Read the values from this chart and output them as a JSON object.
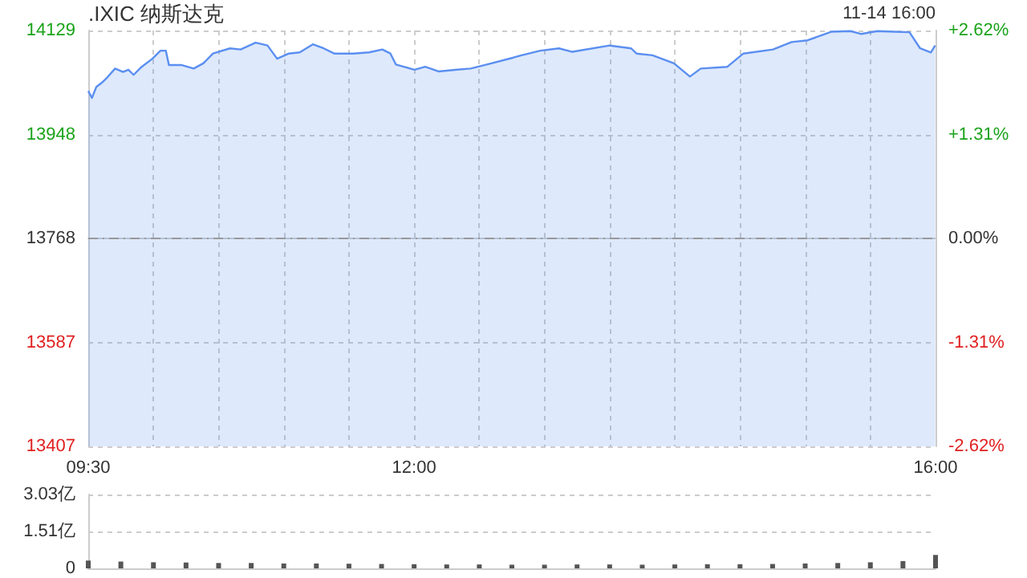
{
  "chart_data": [
    {
      "type": "line",
      "title": ".IXIC 纳斯达克",
      "annotations": [
        "11-14 16:00"
      ],
      "x": [
        9.5,
        9.528,
        9.562,
        9.602,
        9.644,
        9.706,
        9.767,
        9.808,
        9.848,
        9.91,
        9.992,
        10.054,
        10.095,
        10.119,
        10.218,
        10.309,
        10.383,
        10.457,
        10.587,
        10.669,
        10.784,
        10.875,
        10.949,
        11.039,
        11.122,
        11.223,
        11.306,
        11.387,
        11.531,
        11.654,
        11.756,
        11.818,
        11.86,
        12.003,
        12.085,
        12.187,
        12.331,
        12.434,
        12.557,
        12.762,
        12.824,
        12.968,
        13.111,
        13.214,
        13.501,
        13.665,
        13.706,
        13.829,
        13.993,
        14.116,
        14.199,
        14.403,
        14.526,
        14.753,
        14.896,
        15.019,
        15.204,
        15.348,
        15.431,
        15.554,
        15.677,
        15.8,
        15.882,
        15.964,
        15.997
      ],
      "series": [
        {
          "color": "#5b8ff0",
          "values": [
            14024,
            14012,
            14031,
            14038,
            14047,
            14063,
            14057,
            14061,
            14052,
            14066,
            14080,
            14094,
            14094,
            14069,
            14069,
            14063,
            14072,
            14089,
            14098,
            14096,
            14108,
            14103,
            14080,
            14089,
            14091,
            14105,
            14098,
            14089,
            14089,
            14091,
            14096,
            14089,
            14070,
            14061,
            14066,
            14058,
            14061,
            14063,
            14070,
            14082,
            14086,
            14094,
            14098,
            14092,
            14103,
            14098,
            14089,
            14086,
            14072,
            14049,
            14063,
            14066,
            14089,
            14096,
            14109,
            14112,
            14127,
            14128,
            14123,
            14128,
            14127,
            14126,
            14098,
            14091,
            14103
          ]
        }
      ],
      "xlim": [
        9.5,
        16
      ],
      "xticks": [
        {
          "value": 9.5,
          "label": "09:30"
        },
        {
          "value": 10,
          "label": null
        },
        {
          "value": 10.5,
          "label": null
        },
        {
          "value": 11,
          "label": null
        },
        {
          "value": 11.5,
          "label": null
        },
        {
          "value": 12,
          "label": "12:00"
        },
        {
          "value": 12.5,
          "label": null
        },
        {
          "value": 13,
          "label": null
        },
        {
          "value": 13.5,
          "label": null
        },
        {
          "value": 14,
          "label": null
        },
        {
          "value": 14.5,
          "label": null
        },
        {
          "value": 15,
          "label": null
        },
        {
          "value": 15.5,
          "label": null
        },
        {
          "value": 16,
          "label": "16:00"
        }
      ],
      "ylim": [
        13407,
        14129
      ],
      "yticks": [
        13407,
        13587,
        13768,
        13948,
        14129
      ],
      "y2lim": [
        -2.62,
        2.62
      ],
      "y2ticks": [
        {
          "value": -2.62,
          "label": "-2.62%"
        },
        {
          "value": -1.31,
          "label": "-1.31%"
        },
        {
          "value": 0,
          "label": "0.00%"
        },
        {
          "value": 1.31,
          "label": "+1.31%"
        },
        {
          "value": 2.62,
          "label": "+2.62%"
        }
      ],
      "ref_lines": [
        {
          "axis": "y",
          "value": 13768,
          "color": "#999999",
          "line_style": "dashed"
        }
      ],
      "grid": true,
      "marker": "none"
    },
    {
      "type": "bar",
      "x": [
        9.5,
        9.75,
        10,
        10.25,
        10.5,
        10.75,
        11,
        11.25,
        11.5,
        11.75,
        12,
        12.25,
        12.5,
        12.75,
        13,
        13.25,
        13.5,
        13.75,
        14,
        14.25,
        14.5,
        14.75,
        15,
        15.25,
        15.5,
        15.75,
        16
      ],
      "series": [
        {
          "color": "#555555",
          "values": [
            0.32,
            0.28,
            0.25,
            0.24,
            0.22,
            0.22,
            0.2,
            0.2,
            0.19,
            0.18,
            0.17,
            0.16,
            0.16,
            0.15,
            0.15,
            0.16,
            0.16,
            0.15,
            0.16,
            0.17,
            0.17,
            0.18,
            0.2,
            0.22,
            0.25,
            0.3,
            0.55
          ]
        }
      ],
      "xlim": [
        9.5,
        16
      ],
      "ylim": [
        0,
        3.03
      ],
      "yticks": [
        0,
        {
          "value": 1.51,
          "label": "1.51亿"
        },
        {
          "value": 3.03,
          "label": "3.03亿"
        }
      ],
      "grid": "y",
      "tick_labels": "y"
    }
  ]
}
